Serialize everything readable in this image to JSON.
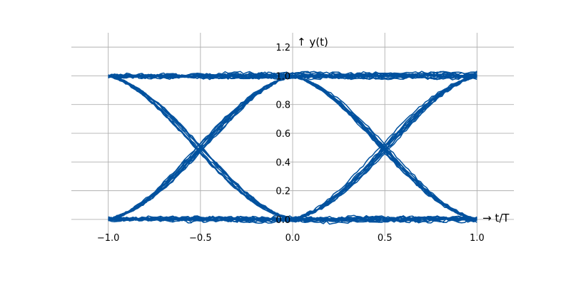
{
  "chart_data": {
    "type": "line",
    "title": "",
    "xlabel": "→ t/T",
    "ylabel": "↑ y(t)",
    "xlim": [
      -1.2,
      1.2
    ],
    "ylim": [
      -0.05,
      1.28
    ],
    "xticks": [
      -1.0,
      -0.5,
      0.0,
      0.5,
      1.0
    ],
    "xtick_labels": [
      "−1.0",
      "−0.5",
      "0.0",
      "0.5",
      "1.0"
    ],
    "yticks": [
      0.0,
      0.2,
      0.4,
      0.6,
      0.8,
      1.0,
      1.2
    ],
    "ytick_labels": [
      "0.0",
      "0.2",
      "0.4",
      "0.6",
      "0.8",
      "1.0",
      "1.2"
    ],
    "grid": true,
    "line_color": "#00519E",
    "description_free_series": [
      {
        "x": [
          -1.0,
          -0.5,
          0.0,
          0.5,
          1.0
        ],
        "y": [
          0.0,
          0.0,
          0.0,
          0.0,
          0.0
        ]
      },
      {
        "x": [
          -1.0,
          -0.5,
          0.0,
          0.5,
          1.0
        ],
        "y": [
          1.0,
          1.0,
          1.0,
          1.0,
          1.0
        ]
      },
      {
        "x": [
          -1.0,
          -0.5,
          0.0
        ],
        "y": [
          1.0,
          0.5,
          0.0
        ]
      },
      {
        "x": [
          -1.0,
          -0.5,
          0.0
        ],
        "y": [
          0.0,
          0.5,
          1.0
        ]
      },
      {
        "x": [
          0.0,
          0.5,
          1.0
        ],
        "y": [
          1.0,
          0.5,
          0.0
        ]
      },
      {
        "x": [
          0.0,
          0.5,
          1.0
        ],
        "y": [
          0.0,
          0.5,
          1.0
        ]
      }
    ]
  }
}
